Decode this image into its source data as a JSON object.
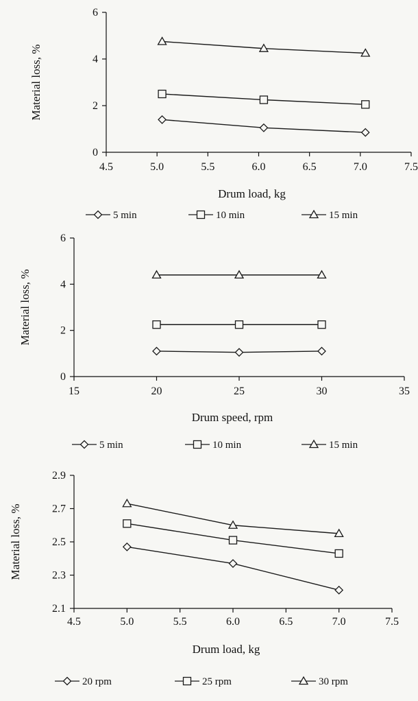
{
  "chart_data": [
    {
      "type": "line",
      "xlabel": "Drum load, kg",
      "ylabel": "Material loss, %",
      "xlim": [
        4.5,
        7.5
      ],
      "ylim": [
        0,
        6
      ],
      "xticks": [
        "4.5",
        "5.0",
        "5.5",
        "6.0",
        "6.5",
        "7.0",
        "7.5"
      ],
      "yticks": [
        "0",
        "2",
        "4",
        "6"
      ],
      "grid": false,
      "legend_position": "bottom",
      "series": [
        {
          "name": "5 min",
          "marker": "diamond",
          "x": [
            5.05,
            6.05,
            7.05
          ],
          "y": [
            1.4,
            1.05,
            0.85
          ]
        },
        {
          "name": "10 min",
          "marker": "square",
          "x": [
            5.05,
            6.05,
            7.05
          ],
          "y": [
            2.5,
            2.25,
            2.05
          ]
        },
        {
          "name": "15 min",
          "marker": "triangle",
          "x": [
            5.05,
            6.05,
            7.05
          ],
          "y": [
            4.75,
            4.45,
            4.25
          ]
        }
      ]
    },
    {
      "type": "line",
      "xlabel": "Drum speed, rpm",
      "ylabel": "Material loss, %",
      "xlim": [
        15,
        35
      ],
      "ylim": [
        0,
        6
      ],
      "xticks": [
        "15",
        "20",
        "25",
        "30",
        "35"
      ],
      "yticks": [
        "0",
        "2",
        "4",
        "6"
      ],
      "grid": false,
      "legend_position": "bottom",
      "series": [
        {
          "name": "5 min",
          "marker": "diamond",
          "x": [
            20,
            25,
            30
          ],
          "y": [
            1.1,
            1.05,
            1.1
          ]
        },
        {
          "name": "10 min",
          "marker": "square",
          "x": [
            20,
            25,
            30
          ],
          "y": [
            2.25,
            2.25,
            2.25
          ]
        },
        {
          "name": "15 min",
          "marker": "triangle",
          "x": [
            20,
            25,
            30
          ],
          "y": [
            4.4,
            4.4,
            4.4
          ]
        }
      ]
    },
    {
      "type": "line",
      "xlabel": "Drum load, kg",
      "ylabel": "Material loss, %",
      "xlim": [
        4.5,
        7.5
      ],
      "ylim": [
        2.1,
        2.9
      ],
      "xticks": [
        "4.5",
        "5.0",
        "5.5",
        "6.0",
        "6.5",
        "7.0",
        "7.5"
      ],
      "yticks": [
        "2.1",
        "2.3",
        "2.5",
        "2.7",
        "2.9"
      ],
      "grid": false,
      "legend_position": "bottom",
      "series": [
        {
          "name": "20 rpm",
          "marker": "diamond",
          "x": [
            5.0,
            6.0,
            7.0
          ],
          "y": [
            2.47,
            2.37,
            2.21
          ]
        },
        {
          "name": "25 rpm",
          "marker": "square",
          "x": [
            5.0,
            6.0,
            7.0
          ],
          "y": [
            2.61,
            2.51,
            2.43
          ]
        },
        {
          "name": "30 rpm",
          "marker": "triangle",
          "x": [
            5.0,
            6.0,
            7.0
          ],
          "y": [
            2.73,
            2.6,
            2.55
          ]
        }
      ]
    }
  ]
}
